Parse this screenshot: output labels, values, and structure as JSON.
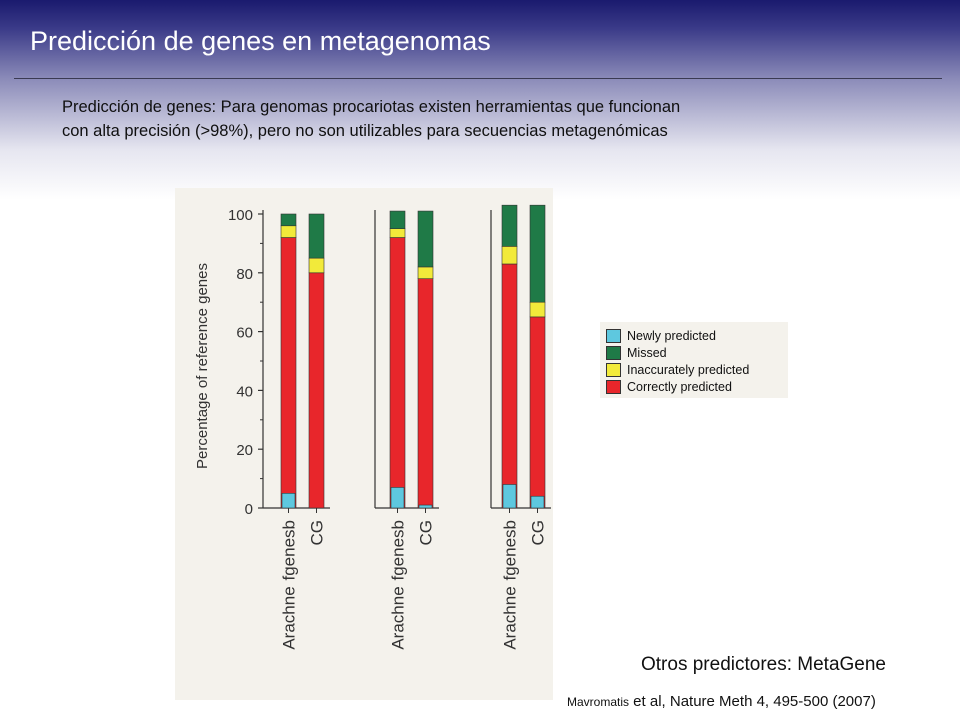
{
  "slide": {
    "title": "Predicción de genes en metagenomas",
    "intro_line1": "Predicción de genes: Para genomas procariotas existen herramientas que funcionan",
    "intro_line2": "con alta precisión (>98%), pero no son utilizables para secuencias metagenómicas",
    "other_predictors": "Otros predictores: MetaGene",
    "citation_author": "Mavromatis",
    "citation_rest": " et al, Nature Meth 4, 495-500 (2007)"
  },
  "colors": {
    "correct": "#e8262b",
    "inaccurate": "#f2ea3a",
    "missed": "#1f7a47",
    "newly": "#5ec8df"
  },
  "chart_data": {
    "type": "bar",
    "ylabel": "Percentage of reference genes",
    "ylim": [
      0,
      100
    ],
    "yticks": [
      0,
      20,
      40,
      60,
      80,
      100
    ],
    "group_label": "Arachne",
    "legend": [
      {
        "key": "newly",
        "label": "Newly predicted"
      },
      {
        "key": "missed",
        "label": "Missed"
      },
      {
        "key": "inaccurate",
        "label": "Inaccurately predicted"
      },
      {
        "key": "correct",
        "label": "Correctly predicted"
      }
    ],
    "groups": [
      {
        "label": "Arachne",
        "bars": [
          {
            "label": "fgenesb",
            "correct": 92,
            "inaccurate": 4,
            "missed": 4,
            "newly": 5
          },
          {
            "label": "CG",
            "correct": 80,
            "inaccurate": 5,
            "missed": 15,
            "newly": 0
          }
        ]
      },
      {
        "label": "Arachne",
        "bars": [
          {
            "label": "fgenesb",
            "correct": 92,
            "inaccurate": 3,
            "missed": 6,
            "newly": 7
          },
          {
            "label": "CG",
            "correct": 78,
            "inaccurate": 4,
            "missed": 19,
            "newly": 1
          }
        ]
      },
      {
        "label": "Arachne",
        "bars": [
          {
            "label": "fgenesb",
            "correct": 83,
            "inaccurate": 6,
            "missed": 14,
            "newly": 8
          },
          {
            "label": "CG",
            "correct": 65,
            "inaccurate": 5,
            "missed": 33,
            "newly": 4
          }
        ]
      }
    ]
  }
}
